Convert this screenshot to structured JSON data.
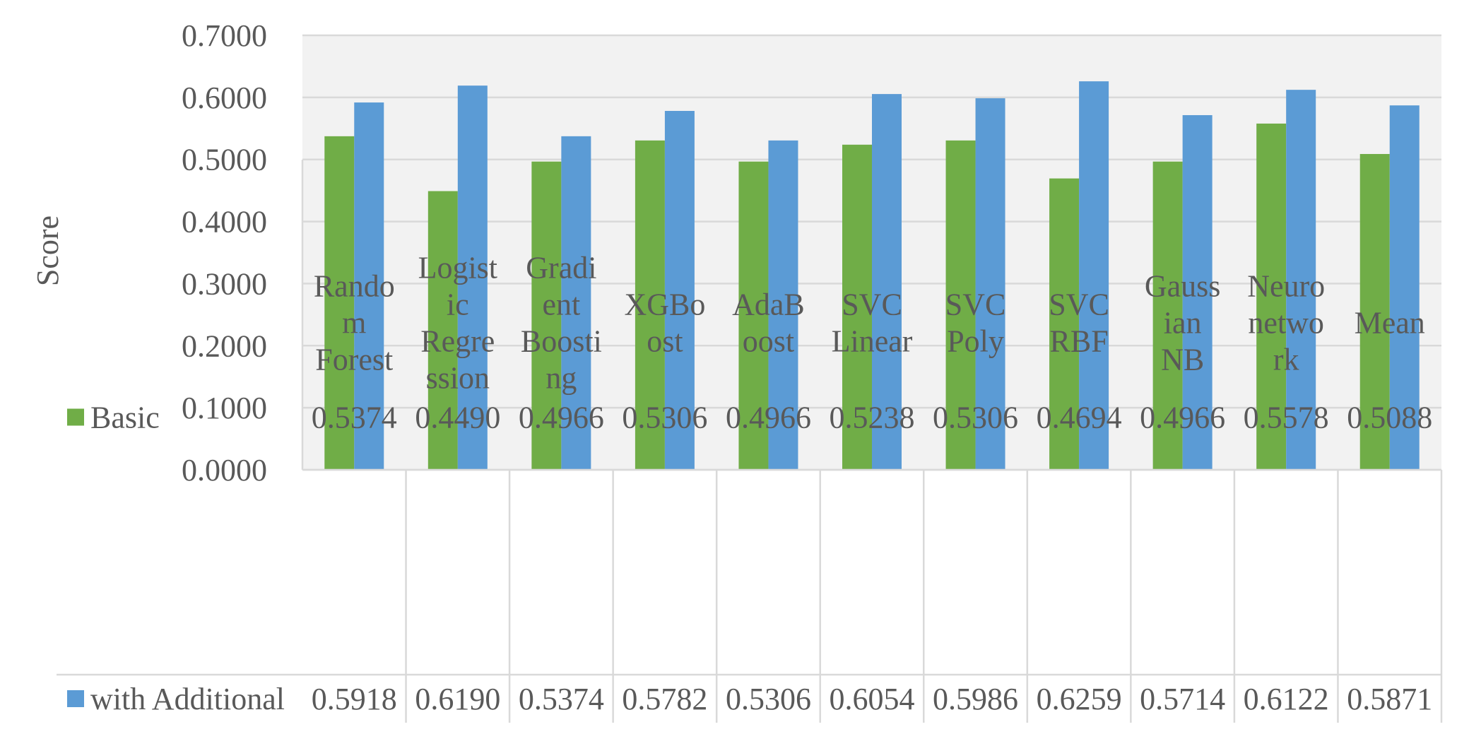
{
  "chart_data": {
    "type": "bar",
    "title": "",
    "xlabel": "",
    "ylabel": "Score",
    "ylim": [
      0,
      0.7
    ],
    "yticks": [
      "0.0000",
      "0.1000",
      "0.2000",
      "0.3000",
      "0.4000",
      "0.5000",
      "0.6000",
      "0.7000"
    ],
    "grid": true,
    "legend": "table-left",
    "categories": [
      [
        "Rando",
        "m",
        "Forest"
      ],
      [
        "Logist",
        "ic",
        "Regre",
        "ssion"
      ],
      [
        "Gradi",
        "ent",
        "Boosti",
        "ng"
      ],
      [
        "XGBo",
        "ost"
      ],
      [
        "AdaB",
        "oost"
      ],
      [
        "SVC",
        "Linear"
      ],
      [
        "SVC",
        "Poly"
      ],
      [
        "SVC",
        "RBF"
      ],
      [
        "Gauss",
        "ian",
        "NB"
      ],
      [
        "Neuro",
        "netwo",
        "rk"
      ],
      [
        "Mean"
      ]
    ],
    "series": [
      {
        "name": "Basic",
        "color": "#70AD47",
        "values": [
          0.5374,
          0.449,
          0.4966,
          0.5306,
          0.4966,
          0.5238,
          0.5306,
          0.4694,
          0.4966,
          0.5578,
          0.5088
        ],
        "labels": [
          "0.5374",
          "0.4490",
          "0.4966",
          "0.5306",
          "0.4966",
          "0.5238",
          "0.5306",
          "0.4694",
          "0.4966",
          "0.5578",
          "0.5088"
        ]
      },
      {
        "name": "with Additional",
        "color": "#5B9BD5",
        "values": [
          0.5918,
          0.619,
          0.5374,
          0.5782,
          0.5306,
          0.6054,
          0.5986,
          0.6259,
          0.5714,
          0.6122,
          0.5871
        ],
        "labels": [
          "0.5918",
          "0.6190",
          "0.5374",
          "0.5782",
          "0.5306",
          "0.6054",
          "0.5986",
          "0.6259",
          "0.5714",
          "0.6122",
          "0.5871"
        ]
      }
    ]
  },
  "colors": {
    "plot_background": "#F2F2F2",
    "gridline": "#D9D9D9",
    "table_line": "#D9D9D9",
    "text": "#595959"
  }
}
